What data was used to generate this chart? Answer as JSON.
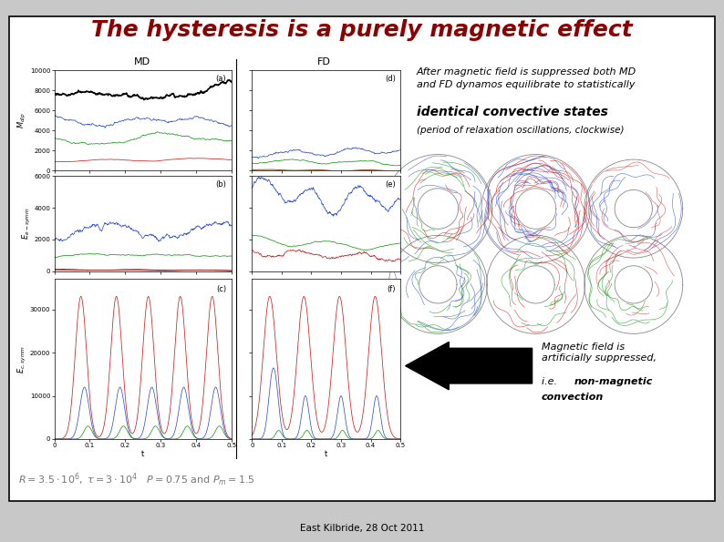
{
  "title": "The hysteresis is a purely magnetic effect",
  "title_color": "#8B0000",
  "title_fontsize": 18,
  "bg_color": "#c8c8c8",
  "slide_bg": "#ffffff",
  "border_color": "#000000",
  "text_right_line1": "After magnetic field is suppressed both MD",
  "text_right_line2": "and FD dynamos equilibrate to statistically",
  "text_right_emphasis": "identical convective states",
  "text_right_sub": "(period of relaxation oscillations, clockwise)",
  "text_arrow_line1": "Magnetic field is",
  "text_arrow_line2": "artificially suppressed,",
  "text_arrow_line3": "i.e.  non-magnetic",
  "text_arrow_line4": "convection",
  "params_text": "$R = 3.5 \\cdot 10^6,\\; \\tau = 3 \\cdot 10^4 \\quad P = 0.75$ and $P_m = 1.5$",
  "footer": "East Kilbride, 28 Oct 2011",
  "plot_label_md": "MD",
  "plot_label_fd": "FD",
  "ylabel_a": "$M_{dip}$",
  "ylabel_b": "$E_{e-symm}$",
  "ylabel_c": "$E_{c,symm}$",
  "xlabel": "t",
  "yticks_a": [
    0,
    2000,
    4000,
    6000,
    8000,
    10000
  ],
  "yticks_b": [
    0,
    2000,
    4000,
    6000
  ],
  "yticks_c": [
    0,
    10000,
    20000,
    30000
  ],
  "xticks": [
    0,
    0.1,
    0.2,
    0.3,
    0.4,
    0.5
  ]
}
